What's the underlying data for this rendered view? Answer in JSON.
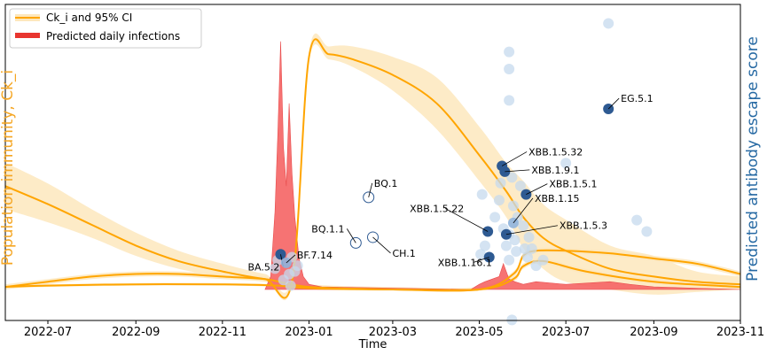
{
  "chart_data": {
    "type": "line",
    "xlabel": "Time",
    "ylabel_left": "Population immunity, Ck_i",
    "ylabel_right": "Predicted antibody escape score",
    "x_ticks": [
      "2022-07",
      "2022-09",
      "2022-11",
      "2023-01",
      "2023-03",
      "2023-05",
      "2023-07",
      "2023-09",
      "2023-11"
    ],
    "xlim": [
      "2022-06-01",
      "2023-11-01"
    ],
    "ylim_left": [
      0,
      1
    ],
    "ylim_right": [
      0,
      1
    ],
    "grid": false,
    "legend_position": "top-left",
    "legend": [
      {
        "label": "Ck_i and 95% CI",
        "color": "#ffa500"
      },
      {
        "label": "Predicted daily infections",
        "color": "#e8352f"
      }
    ],
    "colors": {
      "immunity": "#ffa500",
      "ci": "#fde7bd",
      "infections": "#f56464",
      "escape_dark": "#2e5a92",
      "escape_light": "#c5d9ee",
      "right_axis_title": "#2669a3",
      "left_axis_title": "#f5a623"
    },
    "series": [
      {
        "name": "Ck_i and 95% CI",
        "x": [
          "2022-06-01",
          "2022-07-01",
          "2022-08-01",
          "2022-09-01",
          "2022-10-01",
          "2022-11-01",
          "2022-12-01",
          "2022-12-20",
          "2023-01-01",
          "2023-01-15",
          "2023-02-01",
          "2023-03-01",
          "2023-04-01",
          "2023-05-01",
          "2023-05-20",
          "2023-06-01",
          "2023-06-15",
          "2023-07-01",
          "2023-08-01",
          "2023-09-01",
          "2023-10-01",
          "2023-11-01"
        ],
        "values": [
          0.4,
          0.33,
          0.25,
          0.17,
          0.11,
          0.07,
          0.04,
          0.03,
          0.9,
          0.91,
          0.89,
          0.83,
          0.72,
          0.52,
          0.38,
          0.28,
          0.2,
          0.15,
          0.08,
          0.05,
          0.03,
          0.02
        ],
        "ci_lower": [
          0.31,
          0.26,
          0.2,
          0.13,
          0.08,
          0.05,
          0.03,
          0.02,
          0.88,
          0.89,
          0.86,
          0.77,
          0.62,
          0.42,
          0.28,
          0.16,
          0.08,
          0.03,
          0.0,
          -0.02,
          -0.01,
          0.0
        ],
        "ci_upper": [
          0.49,
          0.41,
          0.31,
          0.22,
          0.15,
          0.1,
          0.06,
          0.05,
          0.92,
          0.94,
          0.94,
          0.9,
          0.82,
          0.63,
          0.49,
          0.42,
          0.33,
          0.27,
          0.17,
          0.13,
          0.07,
          0.05
        ]
      },
      {
        "name": "Ck_i and 95% CI",
        "x": [
          "2022-06-01",
          "2022-07-01",
          "2022-08-01",
          "2022-09-01",
          "2022-10-01",
          "2022-11-01",
          "2022-12-01",
          "2023-01-01",
          "2023-03-01",
          "2023-05-01",
          "2023-05-25",
          "2023-06-01",
          "2023-06-10",
          "2023-07-01",
          "2023-08-01",
          "2023-09-01",
          "2023-10-01",
          "2023-11-01"
        ],
        "values": [
          0.01,
          0.03,
          0.05,
          0.06,
          0.06,
          0.05,
          0.04,
          0.01,
          0.0,
          0.0,
          0.06,
          0.13,
          0.15,
          0.15,
          0.14,
          0.12,
          0.1,
          0.06
        ],
        "ci_lower": [
          0.0,
          0.02,
          0.04,
          0.05,
          0.05,
          0.04,
          0.03,
          0.0,
          0.0,
          0.0,
          0.05,
          0.12,
          0.14,
          0.14,
          0.13,
          0.11,
          0.09,
          0.05
        ],
        "ci_upper": [
          0.02,
          0.04,
          0.06,
          0.07,
          0.07,
          0.06,
          0.05,
          0.02,
          0.01,
          0.01,
          0.07,
          0.14,
          0.16,
          0.16,
          0.15,
          0.13,
          0.11,
          0.07
        ]
      },
      {
        "name": "Ck_i and 95% CI",
        "x": [
          "2022-06-01",
          "2022-07-01",
          "2022-09-01",
          "2022-11-01",
          "2022-12-10",
          "2023-01-01",
          "2023-03-01",
          "2023-05-01",
          "2023-05-25",
          "2023-06-01",
          "2023-06-15",
          "2023-07-15",
          "2023-09-01",
          "2023-11-01"
        ],
        "values": [
          0.01,
          0.015,
          0.02,
          0.02,
          0.015,
          0.005,
          0.0,
          0.0,
          0.04,
          0.09,
          0.11,
          0.07,
          0.03,
          0.01
        ],
        "ci_lower": [
          0.005,
          0.01,
          0.015,
          0.015,
          0.01,
          0.0,
          0.0,
          0.0,
          0.03,
          0.08,
          0.1,
          0.06,
          0.02,
          0.005
        ],
        "ci_upper": [
          0.015,
          0.02,
          0.025,
          0.025,
          0.02,
          0.01,
          0.005,
          0.005,
          0.05,
          0.1,
          0.12,
          0.08,
          0.04,
          0.015
        ]
      },
      {
        "name": "Predicted daily infections",
        "x": [
          "2022-12-01",
          "2022-12-05",
          "2022-12-08",
          "2022-12-10",
          "2022-12-12",
          "2022-12-14",
          "2022-12-16",
          "2022-12-18",
          "2022-12-20",
          "2022-12-22",
          "2022-12-25",
          "2022-12-28",
          "2023-01-01",
          "2023-01-10",
          "2023-04-25",
          "2023-05-01",
          "2023-05-05",
          "2023-05-10",
          "2023-05-15",
          "2023-05-18",
          "2023-05-22",
          "2023-05-26",
          "2023-06-01",
          "2023-06-10",
          "2023-07-01",
          "2023-08-01",
          "2023-08-15",
          "2023-09-01",
          "2023-10-01",
          "2023-11-01"
        ],
        "values": [
          0.0,
          0.05,
          0.3,
          0.6,
          0.96,
          0.55,
          0.4,
          0.72,
          0.45,
          0.28,
          0.12,
          0.05,
          0.02,
          0.01,
          0.0,
          0.02,
          0.03,
          0.04,
          0.05,
          0.1,
          0.04,
          0.03,
          0.02,
          0.03,
          0.02,
          0.03,
          0.02,
          0.01,
          0.005,
          0.0
        ]
      }
    ],
    "annotations": [
      {
        "label": "BA.5.2",
        "x": "2022-12-12",
        "y": 0.17,
        "highlight": true,
        "style": "filled"
      },
      {
        "label": "BF.7.14",
        "x": "2022-12-16",
        "y": 0.14,
        "highlight": true,
        "style": "light"
      },
      {
        "label": "BQ.1",
        "x": "2023-02-12",
        "y": 0.37,
        "highlight": true,
        "style": "hollow"
      },
      {
        "label": "BQ.1.1",
        "x": "2023-02-03",
        "y": 0.21,
        "highlight": true,
        "style": "hollow"
      },
      {
        "label": "CH.1",
        "x": "2023-02-15",
        "y": 0.23,
        "highlight": true,
        "style": "hollow"
      },
      {
        "label": "EG.5.1",
        "x": "2023-07-31",
        "y": 0.68,
        "highlight": true,
        "style": "filled"
      },
      {
        "label": "XBB.1.5.32",
        "x": "2023-05-17",
        "y": 0.48,
        "highlight": true,
        "style": "filled"
      },
      {
        "label": "XBB.1.9.1",
        "x": "2023-05-19",
        "y": 0.46,
        "highlight": true,
        "style": "filled"
      },
      {
        "label": "XBB.1.5.1",
        "x": "2023-06-03",
        "y": 0.38,
        "highlight": true,
        "style": "filled"
      },
      {
        "label": "XBB.1.5.22",
        "x": "2023-05-07",
        "y": 0.25,
        "highlight": true,
        "style": "filled"
      },
      {
        "label": "XBB.1.15",
        "x": "2023-05-25",
        "y": 0.28,
        "highlight": true,
        "style": "light"
      },
      {
        "label": "XBB.1.5.3",
        "x": "2023-05-20",
        "y": 0.24,
        "highlight": true,
        "style": "filled"
      },
      {
        "label": "XBB.1.16.1",
        "x": "2023-05-08",
        "y": 0.16,
        "highlight": true,
        "style": "filled"
      }
    ],
    "escape_points": [
      {
        "x": "2022-12-08",
        "y": 0.12
      },
      {
        "x": "2022-12-18",
        "y": 0.1
      },
      {
        "x": "2022-12-20",
        "y": 0.16
      },
      {
        "x": "2022-12-22",
        "y": 0.11
      },
      {
        "x": "2022-12-14",
        "y": 0.08
      },
      {
        "x": "2022-12-24",
        "y": 0.13
      },
      {
        "x": "2022-12-10",
        "y": 0.15
      },
      {
        "x": "2022-12-19",
        "y": 0.06
      },
      {
        "x": "2023-05-03",
        "y": 0.38
      },
      {
        "x": "2023-05-05",
        "y": 0.2
      },
      {
        "x": "2023-05-12",
        "y": 0.3
      },
      {
        "x": "2023-05-15",
        "y": 0.36
      },
      {
        "x": "2023-05-16",
        "y": 0.42
      },
      {
        "x": "2023-05-18",
        "y": 0.26
      },
      {
        "x": "2023-05-20",
        "y": 0.2
      },
      {
        "x": "2023-05-22",
        "y": 0.88
      },
      {
        "x": "2023-05-22",
        "y": 0.82
      },
      {
        "x": "2023-05-22",
        "y": 0.71
      },
      {
        "x": "2023-05-22",
        "y": 0.24
      },
      {
        "x": "2023-05-22",
        "y": 0.15
      },
      {
        "x": "2023-05-24",
        "y": 0.44
      },
      {
        "x": "2023-05-25",
        "y": 0.34
      },
      {
        "x": "2023-05-26",
        "y": 0.22
      },
      {
        "x": "2023-05-27",
        "y": 0.18
      },
      {
        "x": "2023-05-28",
        "y": 0.3
      },
      {
        "x": "2023-05-30",
        "y": 0.41
      },
      {
        "x": "2023-06-01",
        "y": 0.27
      },
      {
        "x": "2023-06-02",
        "y": 0.19
      },
      {
        "x": "2023-06-04",
        "y": 0.16
      },
      {
        "x": "2023-06-05",
        "y": 0.23
      },
      {
        "x": "2023-06-07",
        "y": 0.19
      },
      {
        "x": "2023-06-10",
        "y": 0.13
      },
      {
        "x": "2023-06-15",
        "y": 0.15
      },
      {
        "x": "2023-05-24",
        "y": -0.06
      },
      {
        "x": "2023-07-31",
        "y": 0.98
      },
      {
        "x": "2023-07-01",
        "y": 0.49
      },
      {
        "x": "2023-08-20",
        "y": 0.29
      },
      {
        "x": "2023-08-27",
        "y": 0.25
      },
      {
        "x": "2023-05-02",
        "y": 0.17
      }
    ]
  }
}
